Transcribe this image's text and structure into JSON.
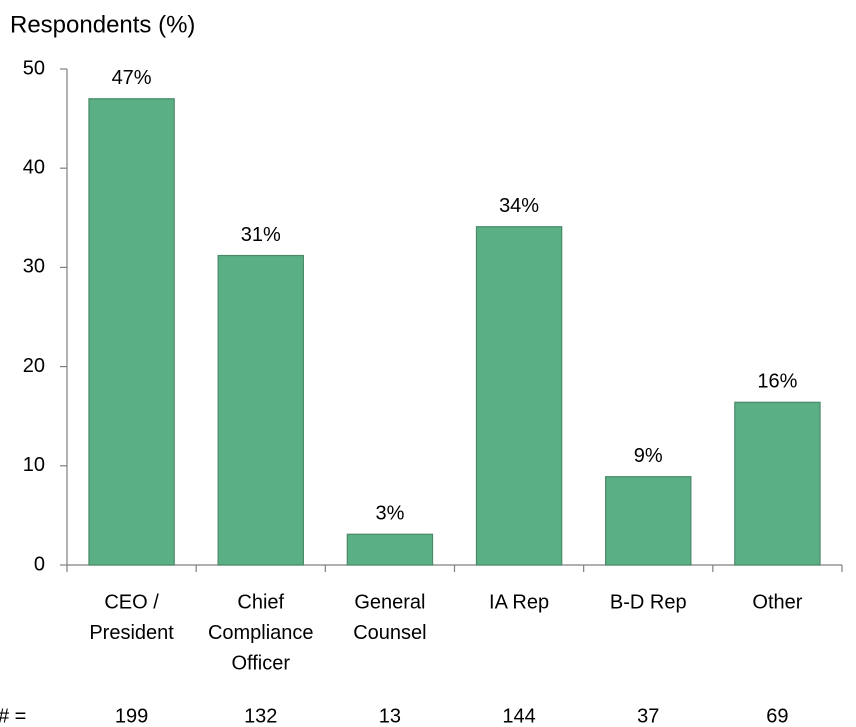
{
  "chart_data": {
    "type": "bar",
    "title": "Respondents (%)",
    "categories": [
      [
        "CEO /",
        "President"
      ],
      [
        "Chief",
        "Compliance",
        "Officer"
      ],
      [
        "General",
        "Counsel"
      ],
      [
        "IA Rep"
      ],
      [
        "B-D Rep"
      ],
      [
        "Other"
      ]
    ],
    "values": [
      47.0,
      31.2,
      3.1,
      34.1,
      8.9,
      16.4
    ],
    "value_labels": [
      "47%",
      "31%",
      "3%",
      "34%",
      "9%",
      "16%"
    ],
    "color": "#5aaf84",
    "ylim": [
      0,
      50
    ],
    "yticks": [
      0,
      10,
      20,
      30,
      40,
      50
    ],
    "counts": {
      "label": "# =",
      "values": [
        199,
        132,
        13,
        144,
        37,
        69
      ]
    }
  }
}
